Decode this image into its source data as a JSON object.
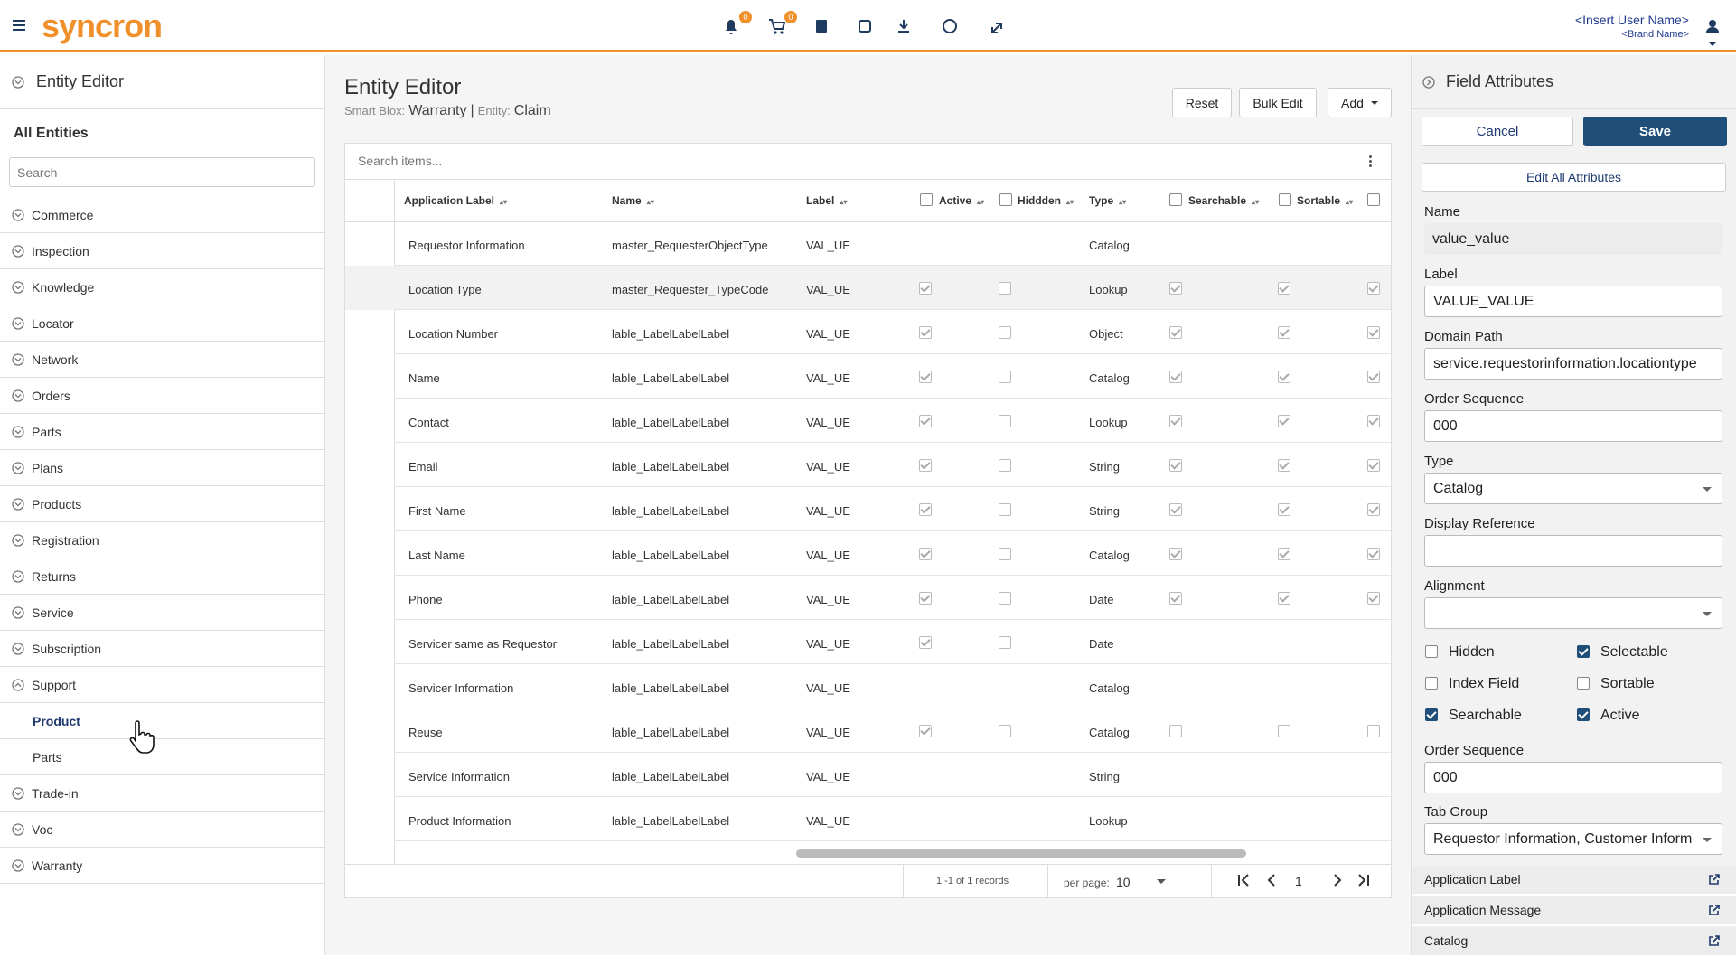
{
  "header": {
    "logo": "syncron",
    "notification_count": "0",
    "cart_count": "0",
    "user_name": "<Insert User Name>",
    "brand_name": "<Brand Name>"
  },
  "sidebar": {
    "title": "Entity Editor",
    "section": "All Entities",
    "search_placeholder": "Search",
    "entities": [
      {
        "label": "Commerce"
      },
      {
        "label": "Inspection"
      },
      {
        "label": "Knowledge"
      },
      {
        "label": "Locator"
      },
      {
        "label": "Network"
      },
      {
        "label": "Orders"
      },
      {
        "label": "Parts"
      },
      {
        "label": "Plans"
      },
      {
        "label": "Products"
      },
      {
        "label": "Registration"
      },
      {
        "label": "Returns"
      },
      {
        "label": "Service"
      },
      {
        "label": "Subscription"
      },
      {
        "label": "Support",
        "children": [
          {
            "label": "Product",
            "selected": true
          },
          {
            "label": "Parts",
            "selected": false
          }
        ]
      },
      {
        "label": "Trade-in"
      },
      {
        "label": "Voc"
      },
      {
        "label": "Warranty"
      }
    ]
  },
  "main": {
    "title": "Entity Editor",
    "smart_blox_label": "Smart Blox:",
    "smart_blox": "Warranty",
    "separator": "|",
    "entity_label": "Entity:",
    "entity": "Claim",
    "buttons": [
      "Reset",
      "Bulk Edit",
      "Add"
    ],
    "search_placeholder": "Search items...",
    "columns": [
      "Application Label",
      "Name",
      "Label",
      "Active",
      "Hiddden",
      "Type",
      "Searchable",
      "Sortable"
    ],
    "rows": [
      {
        "cells": [
          "Requestor Information",
          "master_RequesterObjectType",
          "VAL_UE",
          "Catalog"
        ],
        "checks": [
          null,
          null,
          null,
          null,
          null
        ]
      },
      {
        "cells": [
          "Location Type",
          "master_Requester_TypeCode",
          "VAL_UE",
          "Lookup"
        ],
        "checks": [
          true,
          false,
          true,
          true,
          true
        ],
        "highlighted": true
      },
      {
        "cells": [
          "Location Number",
          "lable_LabelLabelLabel",
          "VAL_UE",
          "Object"
        ],
        "checks": [
          true,
          false,
          true,
          true,
          true
        ]
      },
      {
        "cells": [
          "Name",
          "lable_LabelLabelLabel",
          "VAL_UE",
          "Catalog"
        ],
        "checks": [
          true,
          false,
          true,
          true,
          true
        ]
      },
      {
        "cells": [
          "Contact",
          "lable_LabelLabelLabel",
          "VAL_UE",
          "Lookup"
        ],
        "checks": [
          true,
          false,
          true,
          true,
          true
        ]
      },
      {
        "cells": [
          "Email",
          "lable_LabelLabelLabel",
          "VAL_UE",
          "String"
        ],
        "checks": [
          true,
          false,
          true,
          true,
          true
        ]
      },
      {
        "cells": [
          "First Name",
          "lable_LabelLabelLabel",
          "VAL_UE",
          "String"
        ],
        "checks": [
          true,
          false,
          true,
          true,
          true
        ]
      },
      {
        "cells": [
          "Last Name",
          "lable_LabelLabelLabel",
          "VAL_UE",
          "Catalog"
        ],
        "checks": [
          true,
          false,
          true,
          true,
          true
        ]
      },
      {
        "cells": [
          "Phone",
          "lable_LabelLabelLabel",
          "VAL_UE",
          "Date"
        ],
        "checks": [
          true,
          false,
          true,
          true,
          true
        ]
      },
      {
        "cells": [
          "Servicer same as Requestor",
          "lable_LabelLabelLabel",
          "VAL_UE",
          "Date"
        ],
        "checks": [
          true,
          false,
          null,
          null,
          null
        ]
      },
      {
        "cells": [
          "Servicer Information",
          "lable_LabelLabelLabel",
          "VAL_UE",
          "Catalog"
        ],
        "checks": [
          null,
          null,
          null,
          null,
          null
        ]
      },
      {
        "cells": [
          "Reuse",
          "lable_LabelLabelLabel",
          "VAL_UE",
          "Catalog"
        ],
        "checks": [
          true,
          false,
          false,
          false,
          false
        ]
      },
      {
        "cells": [
          "Service Information",
          "lable_LabelLabelLabel",
          "VAL_UE",
          "String"
        ],
        "checks": [
          null,
          null,
          null,
          null,
          null
        ]
      },
      {
        "cells": [
          "Product Information",
          "lable_LabelLabelLabel",
          "VAL_UE",
          "Lookup"
        ],
        "checks": [
          null,
          null,
          null,
          null,
          null
        ]
      }
    ],
    "pagination": {
      "records": "1 -1 of 1 records",
      "per_page_label": "per page:",
      "per_page": "10",
      "page": "1"
    }
  },
  "panel": {
    "title": "Field Attributes",
    "cancel": "Cancel",
    "save": "Save",
    "edit_all": "Edit All Attributes",
    "fields": [
      {
        "label": "Name",
        "value": "value_value",
        "kind": "static"
      },
      {
        "label": "Label",
        "value": "VALUE_VALUE",
        "kind": "input"
      },
      {
        "label": "Domain Path",
        "value": "service.requestorinformation.locationtype",
        "kind": "input"
      },
      {
        "label": "Order Sequence",
        "value": "000",
        "kind": "input"
      },
      {
        "label": "Type",
        "value": "Catalog",
        "kind": "select"
      },
      {
        "label": "Display Reference",
        "value": null,
        "kind": "input"
      },
      {
        "label": "Alignment",
        "value": null,
        "kind": "select"
      }
    ],
    "checkboxes": [
      {
        "label": "Hidden",
        "checked": false
      },
      {
        "label": "Selectable",
        "checked": true
      },
      {
        "label": "Index Field",
        "checked": false
      },
      {
        "label": "Sortable",
        "checked": false
      },
      {
        "label": "Searchable",
        "checked": true
      },
      {
        "label": "Active",
        "checked": true
      }
    ],
    "fields2": [
      {
        "label": "Order Sequence",
        "value": "000",
        "kind": "input"
      },
      {
        "label": "Tab Group",
        "value": "Requestor Information, Customer Inform",
        "kind": "select"
      }
    ],
    "links": [
      "Application Label",
      "Application Message",
      "Catalog"
    ]
  }
}
